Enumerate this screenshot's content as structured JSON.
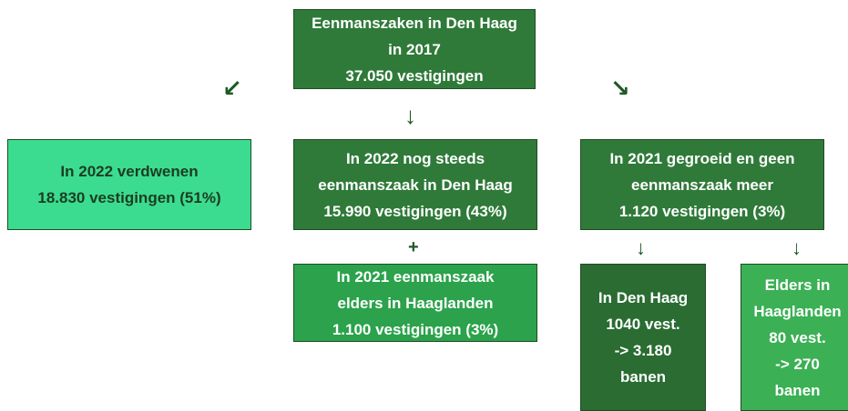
{
  "nodes": [
    {
      "lines": [
        "Eenmanszaken in Den Haag",
        "in 2017",
        "37.050 vestigingen"
      ]
    },
    {
      "lines": [
        "In 2022 verdwenen",
        "18.830 vestigingen (51%)"
      ]
    },
    {
      "lines": [
        "In 2022 nog steeds",
        "eenmanszaak in Den Haag",
        "15.990 vestigingen (43%)"
      ]
    },
    {
      "lines": [
        "In 2021 gegroeid en geen",
        "eenmanszaak meer",
        "1.120 vestigingen (3%)"
      ]
    },
    {
      "lines": [
        "In 2021 eenmanszaak",
        "elders in Haaglanden",
        "1.100 vestigingen (3%)"
      ]
    },
    {
      "lines": [
        "In Den Haag",
        "1040 vest.",
        "-> 3.180",
        "banen"
      ]
    },
    {
      "lines": [
        "Elders in",
        "Haaglanden",
        "80 vest.",
        "-> 270",
        "banen"
      ]
    }
  ],
  "plus": "+"
}
